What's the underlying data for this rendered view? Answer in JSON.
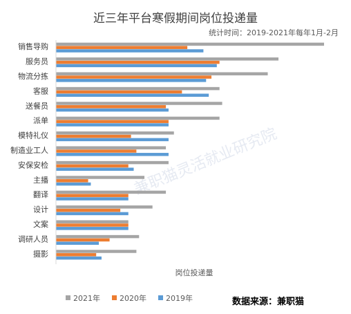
{
  "chart_data": {
    "type": "bar",
    "orientation": "horizontal",
    "title": "近三年平台寒假期间岗位投递量",
    "subtitle": "统计时间：2019-2021年每年1月-2月",
    "xlabel": "岗位投递量",
    "source": "数据来源：兼职猫",
    "watermark": "兼职猫灵活就业研究院",
    "categories": [
      "销售导购",
      "服务员",
      "物流分拣",
      "客服",
      "送餐员",
      "派单",
      "模特礼仪",
      "制造业工人",
      "安保安检",
      "主播",
      "翻译",
      "设计",
      "文案",
      "调研人员",
      "摄影"
    ],
    "series": [
      {
        "name": "2021年",
        "color": "#a5a5a5",
        "values": [
          100,
          83,
          79,
          61,
          62,
          61,
          44,
          41,
          42,
          33,
          41,
          36,
          27,
          31,
          30
        ]
      },
      {
        "name": "2020年",
        "color": "#ed7d31",
        "values": [
          49,
          61,
          58,
          47,
          41,
          42,
          28,
          30,
          27,
          12,
          27,
          24,
          27,
          20,
          15
        ]
      },
      {
        "name": "2019年",
        "color": "#5b9bd5",
        "values": [
          55,
          60,
          56,
          57,
          42,
          42,
          42,
          42,
          29,
          13,
          27,
          27,
          27,
          16,
          17
        ]
      }
    ],
    "legend_position": "bottom-left",
    "grid": false
  }
}
